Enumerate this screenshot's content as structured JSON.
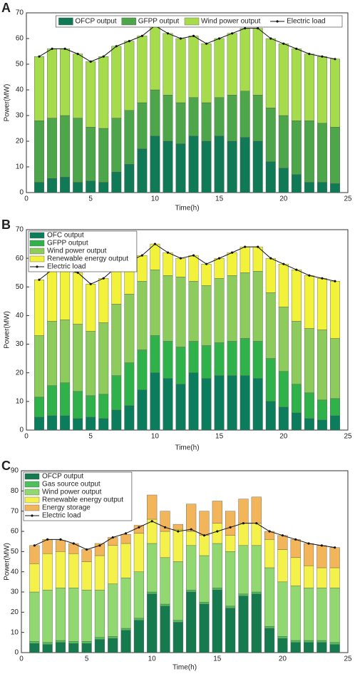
{
  "chart_data": [
    {
      "type": "bar",
      "panel": "A",
      "xlabel": "Time(h)",
      "ylabel": "Power(MW)",
      "x": [
        1,
        2,
        3,
        4,
        5,
        6,
        7,
        8,
        9,
        10,
        11,
        12,
        13,
        14,
        15,
        16,
        17,
        18,
        19,
        20,
        21,
        22,
        23,
        24
      ],
      "xlim": [
        0,
        25
      ],
      "xticks": [
        0,
        5,
        10,
        15,
        20,
        25
      ],
      "ylim": [
        0,
        70
      ],
      "yticks": [
        0,
        10,
        20,
        30,
        40,
        50,
        60,
        70
      ],
      "legend": "top",
      "series": [
        {
          "name": "OFCP output",
          "color": "#0f7a55",
          "values": [
            4,
            5.5,
            6,
            4,
            4.5,
            4,
            8,
            11,
            17,
            22,
            20,
            19,
            22,
            20,
            22,
            20,
            21.5,
            20,
            12,
            9.5,
            7,
            4,
            4,
            3.5
          ]
        },
        {
          "name": "GFPP output",
          "color": "#4ea64a",
          "values": [
            24,
            23.5,
            24,
            25,
            21,
            21,
            21,
            21,
            18,
            18,
            18,
            16,
            15,
            15,
            15,
            18,
            18,
            18,
            21,
            20.5,
            21,
            24,
            23,
            22
          ]
        },
        {
          "name": "Wind power output",
          "color": "#a6dc4c",
          "values": [
            25,
            27,
            26,
            25,
            25.5,
            28,
            28,
            27,
            26,
            25,
            24,
            25,
            24,
            23,
            23,
            24,
            24.5,
            26,
            27,
            28,
            28,
            26,
            26,
            26.5
          ]
        },
        {
          "name": "Electric load",
          "type": "line",
          "color": "#111111",
          "values": [
            53,
            56,
            56,
            54,
            51,
            53,
            57,
            59,
            61,
            65,
            62,
            60,
            61,
            58,
            60,
            62,
            64,
            64,
            60,
            58,
            56,
            54,
            53,
            52
          ]
        }
      ]
    },
    {
      "type": "bar",
      "panel": "B",
      "xlabel": "Time(h)",
      "ylabel": "Power(MW)",
      "x": [
        1,
        2,
        3,
        4,
        5,
        6,
        7,
        8,
        9,
        10,
        11,
        12,
        13,
        14,
        15,
        16,
        17,
        18,
        19,
        20,
        21,
        22,
        23,
        24
      ],
      "xlim": [
        0,
        25
      ],
      "xticks": [
        0,
        5,
        10,
        15,
        20,
        25
      ],
      "ylim": [
        0,
        70
      ],
      "yticks": [
        0,
        10,
        20,
        30,
        40,
        50,
        60,
        70
      ],
      "legend": "upper left",
      "series": [
        {
          "name": "OFC output",
          "color": "#0c7d5c",
          "values": [
            4.5,
            5,
            5,
            4,
            4.5,
            4,
            7,
            8.5,
            14,
            20,
            18,
            16,
            20,
            18,
            19,
            19,
            19,
            18,
            10,
            8,
            6,
            4,
            3.5,
            5
          ]
        },
        {
          "name": "GFPP output",
          "color": "#2fb24a",
          "values": [
            7,
            10.5,
            11.5,
            9.5,
            7.5,
            8.5,
            12,
            15,
            14,
            13,
            13,
            13,
            11,
            11.5,
            11.5,
            12,
            13,
            13,
            15,
            12.5,
            10,
            9,
            7,
            6
          ]
        },
        {
          "name": "Wind power output",
          "color": "#8ccb5c",
          "values": [
            21.5,
            22.5,
            22,
            23.5,
            22.5,
            25,
            25,
            24,
            24,
            23,
            23,
            24.5,
            21,
            21,
            22.5,
            23,
            23,
            24.5,
            23,
            22.5,
            22,
            22.5,
            24.5,
            21
          ]
        },
        {
          "name": "Renewable energy output",
          "color": "#f2f23a",
          "values": [
            19.5,
            18,
            17.5,
            18,
            16.5,
            15.5,
            13,
            11.5,
            9,
            9,
            8,
            6.5,
            9,
            7.5,
            7,
            8,
            9,
            8.5,
            12,
            15,
            18,
            18.5,
            18,
            20
          ]
        },
        {
          "name": "Electric load",
          "type": "line",
          "color": "#111111",
          "values": [
            52.5,
            56,
            56,
            55,
            51,
            53,
            57,
            59,
            61,
            65,
            62,
            60,
            61,
            58,
            60,
            62,
            64,
            64,
            60,
            58,
            56,
            54,
            53,
            52
          ]
        }
      ]
    },
    {
      "type": "bar",
      "panel": "C",
      "xlabel": "Time(h)",
      "ylabel": "Power(MW)",
      "x": [
        1,
        2,
        3,
        4,
        5,
        6,
        7,
        8,
        9,
        10,
        11,
        12,
        13,
        14,
        15,
        16,
        17,
        18,
        19,
        20,
        21,
        22,
        23,
        24
      ],
      "xlim": [
        0,
        25
      ],
      "xticks": [
        0,
        5,
        10,
        15,
        20,
        25
      ],
      "ylim": [
        0,
        90
      ],
      "yticks": [
        0,
        10,
        20,
        30,
        40,
        50,
        60,
        70,
        80,
        90
      ],
      "legend": "upper left",
      "series": [
        {
          "name": "OFCP output",
          "color": "#157a4e",
          "values": [
            4.5,
            4,
            5,
            4.5,
            4.5,
            6.5,
            7,
            11,
            16,
            29,
            23,
            15,
            30,
            24,
            31,
            22,
            28,
            29,
            12,
            7,
            5,
            5,
            5,
            4
          ]
        },
        {
          "name": "Gas source output",
          "color": "#4cc05a",
          "values": [
            1,
            1,
            1,
            1,
            1,
            1,
            1,
            1,
            1,
            1,
            1,
            1,
            1,
            1,
            1,
            1,
            1,
            1,
            1,
            1,
            1,
            1,
            1,
            1
          ]
        },
        {
          "name": "Wind power output",
          "color": "#92d870",
          "values": [
            24.5,
            26,
            26,
            26.5,
            25.5,
            23.5,
            26,
            25,
            23,
            24,
            23,
            29,
            22,
            23,
            22,
            27,
            24,
            23,
            29,
            27,
            27,
            26,
            26,
            27
          ]
        },
        {
          "name": "Renewable energy output",
          "color": "#f4f24a",
          "values": [
            14,
            18,
            18,
            17,
            14,
            17,
            19,
            17,
            19,
            12,
            13,
            16,
            7,
            10,
            10,
            8,
            11,
            11,
            14,
            16,
            14,
            11,
            10,
            10
          ]
        },
        {
          "name": "Energy storage",
          "color": "#f3b55a",
          "values": [
            9,
            7,
            5.5,
            5,
            6,
            6,
            4,
            4.5,
            4,
            12,
            10,
            2.5,
            13.5,
            12,
            11,
            12,
            12,
            13,
            4,
            7,
            9,
            11,
            11,
            10
          ]
        },
        {
          "name": "Electric load",
          "type": "line",
          "color": "#111111",
          "values": [
            53,
            56,
            56,
            54,
            51,
            53,
            57,
            59,
            62,
            65,
            62,
            60,
            61,
            58,
            60,
            62,
            64,
            64,
            60,
            58,
            56,
            54,
            53,
            52
          ]
        }
      ]
    }
  ]
}
